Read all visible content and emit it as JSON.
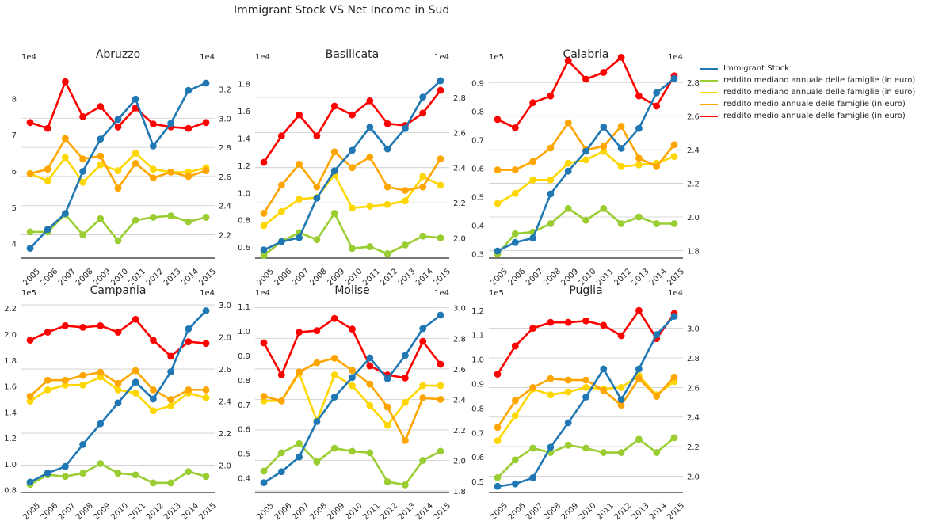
{
  "figure": {
    "suptitle": "Immigrant Stock VS Net Income in Sud"
  },
  "colors": {
    "immigrant": "#1f77b4",
    "mediano_1": "#9acd32",
    "mediano_2": "#ffd700",
    "medio_1": "#ffa500",
    "medio_2": "#ff0000"
  },
  "legend": [
    {
      "label": "Immigrant Stock",
      "color_key": "immigrant"
    },
    {
      "label": "reddito mediano annuale delle famiglie (in euro)",
      "color_key": "mediano_1"
    },
    {
      "label": "reddito mediano annuale delle famiglie (in euro)",
      "color_key": "mediano_2"
    },
    {
      "label": "reddito medio annuale delle famiglie (in euro)",
      "color_key": "medio_1"
    },
    {
      "label": "reddito medio annuale delle famiglie (in euro)",
      "color_key": "medio_2"
    }
  ],
  "chart_data": [
    {
      "type": "line",
      "title": "Abruzzo",
      "x": [
        "2005",
        "2006",
        "2007",
        "2008",
        "2009",
        "2010",
        "2011",
        "2012",
        "2013",
        "2014",
        "2015"
      ],
      "left_axis": {
        "offset_label": "1e4",
        "ylim": [
          3.6,
          8.9
        ],
        "ticks": [
          "4",
          "5",
          "6",
          "7",
          "8"
        ],
        "tick_values": [
          4,
          5,
          6,
          7,
          8
        ]
      },
      "right_axis": {
        "offset_label": "1e4",
        "ylim": [
          2.04,
          3.36
        ],
        "ticks": [
          "2.2",
          "2.4",
          "2.6",
          "2.8",
          "3.0",
          "3.2"
        ],
        "tick_values": [
          2.2,
          2.4,
          2.6,
          2.8,
          3.0,
          3.2
        ]
      },
      "grid": true,
      "series": [
        {
          "color_key": "immigrant",
          "axis": "left",
          "values": [
            3.87,
            4.39,
            4.83,
            5.99,
            6.88,
            7.42,
            7.98,
            6.69,
            7.31,
            8.22,
            8.42
          ]
        },
        {
          "color_key": "mediano_1",
          "axis": "right",
          "values": [
            2.22,
            2.22,
            2.34,
            2.2,
            2.31,
            2.16,
            2.3,
            2.32,
            2.33,
            2.29,
            2.32
          ]
        },
        {
          "color_key": "mediano_2",
          "axis": "right",
          "values": [
            2.62,
            2.57,
            2.73,
            2.56,
            2.68,
            2.64,
            2.76,
            2.65,
            2.63,
            2.63,
            2.66
          ]
        },
        {
          "color_key": "medio_1",
          "axis": "right",
          "values": [
            2.62,
            2.65,
            2.86,
            2.72,
            2.74,
            2.52,
            2.69,
            2.59,
            2.63,
            2.6,
            2.64
          ]
        },
        {
          "color_key": "medio_2",
          "axis": "right",
          "values": [
            2.97,
            2.93,
            3.25,
            3.01,
            3.08,
            2.94,
            3.07,
            2.96,
            2.94,
            2.93,
            2.97
          ]
        }
      ]
    },
    {
      "type": "line",
      "title": "Basilicata",
      "x": [
        "2005",
        "2006",
        "2007",
        "2008",
        "2009",
        "2010",
        "2011",
        "2012",
        "2013",
        "2014",
        "2015"
      ],
      "left_axis": {
        "offset_label": "1e4",
        "ylim": [
          0.52,
          1.93
        ],
        "ticks": [
          "0.6",
          "0.8",
          "1.0",
          "1.2",
          "1.4",
          "1.6",
          "1.8"
        ],
        "tick_values": [
          0.6,
          0.8,
          1.0,
          1.2,
          1.4,
          1.6,
          1.8
        ]
      },
      "right_axis": {
        "offset_label": "1e4",
        "ylim": [
          1.885,
          2.98
        ],
        "ticks": [
          "2.0",
          "2.2",
          "2.4",
          "2.6",
          "2.8"
        ],
        "tick_values": [
          2.0,
          2.2,
          2.4,
          2.6,
          2.8
        ]
      },
      "grid": true,
      "series": [
        {
          "color_key": "immigrant",
          "axis": "left",
          "values": [
            0.58,
            0.64,
            0.67,
            0.96,
            1.16,
            1.31,
            1.48,
            1.32,
            1.47,
            1.7,
            1.82
          ]
        },
        {
          "color_key": "mediano_1",
          "axis": "right",
          "values": [
            1.9,
            1.98,
            2.03,
            1.99,
            2.14,
            1.94,
            1.95,
            1.91,
            1.96,
            2.01,
            2.0
          ]
        },
        {
          "color_key": "mediano_2",
          "axis": "right",
          "values": [
            2.07,
            2.15,
            2.22,
            2.23,
            2.36,
            2.17,
            2.18,
            2.19,
            2.21,
            2.35,
            2.3
          ]
        },
        {
          "color_key": "medio_1",
          "axis": "right",
          "values": [
            2.14,
            2.3,
            2.42,
            2.29,
            2.49,
            2.4,
            2.46,
            2.29,
            2.27,
            2.29,
            2.45
          ]
        },
        {
          "color_key": "medio_2",
          "axis": "right",
          "values": [
            2.43,
            2.58,
            2.7,
            2.58,
            2.75,
            2.7,
            2.78,
            2.65,
            2.64,
            2.71,
            2.84
          ]
        }
      ]
    },
    {
      "type": "line",
      "title": "Calabria",
      "x": [
        "2005",
        "2006",
        "2007",
        "2008",
        "2009",
        "2010",
        "2011",
        "2012",
        "2013",
        "2014",
        "2015"
      ],
      "left_axis": {
        "offset_label": "1e5",
        "ylim": [
          0.285,
          0.96
        ],
        "ticks": [
          "0.3",
          "0.4",
          "0.5",
          "0.6",
          "0.7",
          "0.8",
          "0.9"
        ],
        "tick_values": [
          0.3,
          0.4,
          0.5,
          0.6,
          0.7,
          0.8,
          0.9
        ]
      },
      "right_axis": {
        "offset_label": "1e4",
        "ylim": [
          1.755,
          2.9
        ],
        "ticks": [
          "1.8",
          "2.0",
          "2.2",
          "2.4",
          "2.6",
          "2.8"
        ],
        "tick_values": [
          1.8,
          2.0,
          2.2,
          2.4,
          2.6,
          2.8
        ]
      },
      "grid": true,
      "series": [
        {
          "color_key": "immigrant",
          "axis": "left",
          "values": [
            0.31,
            0.34,
            0.355,
            0.51,
            0.59,
            0.66,
            0.745,
            0.67,
            0.74,
            0.865,
            0.915
          ]
        },
        {
          "color_key": "mediano_1",
          "axis": "right",
          "values": [
            1.78,
            1.9,
            1.91,
            1.96,
            2.05,
            1.98,
            2.05,
            1.96,
            2.0,
            1.96,
            1.96
          ]
        },
        {
          "color_key": "mediano_2",
          "axis": "right",
          "values": [
            2.08,
            2.14,
            2.22,
            2.22,
            2.32,
            2.34,
            2.39,
            2.3,
            2.31,
            2.32,
            2.36
          ]
        },
        {
          "color_key": "medio_1",
          "axis": "right",
          "values": [
            2.28,
            2.28,
            2.33,
            2.41,
            2.56,
            2.4,
            2.42,
            2.54,
            2.35,
            2.3,
            2.43
          ]
        },
        {
          "color_key": "medio_2",
          "axis": "right",
          "values": [
            2.58,
            2.53,
            2.68,
            2.72,
            2.93,
            2.82,
            2.86,
            2.95,
            2.72,
            2.66,
            2.84
          ]
        }
      ]
    },
    {
      "type": "line",
      "title": "Campania",
      "x": [
        "2005",
        "2006",
        "2007",
        "2008",
        "2009",
        "2010",
        "2011",
        "2012",
        "2013",
        "2014",
        "2015"
      ],
      "left_axis": {
        "offset_label": "1e5",
        "ylim": [
          0.78,
          2.25
        ],
        "ticks": [
          "0.8",
          "1.0",
          "1.2",
          "1.4",
          "1.6",
          "1.8",
          "2.0",
          "2.2"
        ],
        "tick_values": [
          0.8,
          1.0,
          1.2,
          1.4,
          1.6,
          1.8,
          2.0,
          2.2
        ]
      },
      "right_axis": {
        "offset_label": "1e4",
        "ylim": [
          1.83,
          3.02
        ],
        "ticks": [
          "2.0",
          "2.2",
          "2.4",
          "2.6",
          "2.8",
          "3.0"
        ],
        "tick_values": [
          2.0,
          2.2,
          2.4,
          2.6,
          2.8,
          3.0
        ]
      },
      "grid": true,
      "series": [
        {
          "color_key": "immigrant",
          "axis": "left",
          "values": [
            0.86,
            0.93,
            0.98,
            1.15,
            1.31,
            1.47,
            1.63,
            1.5,
            1.71,
            2.04,
            2.18
          ]
        },
        {
          "color_key": "mediano_1",
          "axis": "right",
          "values": [
            1.88,
            1.94,
            1.93,
            1.95,
            2.01,
            1.95,
            1.94,
            1.89,
            1.89,
            1.96,
            1.93
          ]
        },
        {
          "color_key": "mediano_2",
          "axis": "right",
          "values": [
            2.4,
            2.47,
            2.5,
            2.5,
            2.55,
            2.47,
            2.45,
            2.34,
            2.37,
            2.45,
            2.42
          ]
        },
        {
          "color_key": "medio_1",
          "axis": "right",
          "values": [
            2.43,
            2.53,
            2.53,
            2.56,
            2.58,
            2.51,
            2.59,
            2.47,
            2.41,
            2.47,
            2.47
          ]
        },
        {
          "color_key": "medio_2",
          "axis": "right",
          "values": [
            2.78,
            2.83,
            2.87,
            2.86,
            2.87,
            2.83,
            2.91,
            2.78,
            2.68,
            2.77,
            2.76
          ]
        }
      ]
    },
    {
      "type": "line",
      "title": "Molise",
      "x": [
        "2005",
        "2006",
        "2007",
        "2008",
        "2009",
        "2010",
        "2011",
        "2012",
        "2013",
        "2014",
        "2015"
      ],
      "left_axis": {
        "offset_label": "1e4",
        "ylim": [
          0.34,
          1.12
        ],
        "ticks": [
          "0.4",
          "0.5",
          "0.6",
          "0.7",
          "0.8",
          "0.9",
          "1.0",
          "1.1"
        ],
        "tick_values": [
          0.4,
          0.5,
          0.6,
          0.7,
          0.8,
          0.9,
          1.0,
          1.1
        ]
      },
      "right_axis": {
        "offset_label": "1e4",
        "ylim": [
          1.79,
          3.04
        ],
        "ticks": [
          "1.8",
          "2.0",
          "2.2",
          "2.4",
          "2.6",
          "2.8",
          "3.0"
        ],
        "tick_values": [
          1.8,
          2.0,
          2.2,
          2.4,
          2.6,
          2.8,
          3.0
        ]
      },
      "grid": true,
      "series": [
        {
          "color_key": "immigrant",
          "axis": "left",
          "values": [
            0.38,
            0.425,
            0.485,
            0.63,
            0.73,
            0.81,
            0.89,
            0.805,
            0.9,
            1.01,
            1.065
          ]
        },
        {
          "color_key": "mediano_1",
          "axis": "right",
          "values": [
            1.93,
            2.05,
            2.11,
            1.99,
            2.08,
            2.06,
            2.05,
            1.86,
            1.84,
            2.0,
            2.06
          ]
        },
        {
          "color_key": "mediano_2",
          "axis": "right",
          "values": [
            2.39,
            2.39,
            2.57,
            2.26,
            2.56,
            2.49,
            2.36,
            2.23,
            2.38,
            2.49,
            2.49
          ]
        },
        {
          "color_key": "medio_1",
          "axis": "right",
          "values": [
            2.42,
            2.39,
            2.58,
            2.64,
            2.67,
            2.59,
            2.5,
            2.35,
            2.13,
            2.41,
            2.4
          ]
        },
        {
          "color_key": "medio_2",
          "axis": "right",
          "values": [
            2.77,
            2.56,
            2.84,
            2.85,
            2.93,
            2.86,
            2.62,
            2.56,
            2.54,
            2.78,
            2.63
          ]
        }
      ]
    },
    {
      "type": "line",
      "title": "Puglia",
      "x": [
        "2005",
        "2006",
        "2007",
        "2008",
        "2009",
        "2010",
        "2011",
        "2012",
        "2013",
        "2014",
        "2015"
      ],
      "left_axis": {
        "offset_label": "1e5",
        "ylim": [
          0.455,
          1.235
        ],
        "ticks": [
          "0.5",
          "0.6",
          "0.7",
          "0.8",
          "0.9",
          "1.0",
          "1.1",
          "1.2"
        ],
        "tick_values": [
          0.5,
          0.6,
          0.7,
          0.8,
          0.9,
          1.0,
          1.1,
          1.2
        ]
      },
      "right_axis": {
        "offset_label": "1e4",
        "ylim": [
          1.89,
          3.18
        ],
        "ticks": [
          "2.0",
          "2.2",
          "2.4",
          "2.6",
          "2.8",
          "3.0"
        ],
        "tick_values": [
          2.0,
          2.2,
          2.4,
          2.6,
          2.8,
          3.0
        ]
      },
      "grid": true,
      "series": [
        {
          "color_key": "immigrant",
          "axis": "left",
          "values": [
            0.48,
            0.49,
            0.515,
            0.64,
            0.74,
            0.845,
            0.96,
            0.835,
            0.96,
            1.1,
            1.175
          ]
        },
        {
          "color_key": "mediano_1",
          "axis": "right",
          "values": [
            1.99,
            2.11,
            2.19,
            2.16,
            2.21,
            2.19,
            2.16,
            2.16,
            2.25,
            2.16,
            2.26
          ]
        },
        {
          "color_key": "mediano_2",
          "axis": "right",
          "values": [
            2.24,
            2.41,
            2.59,
            2.55,
            2.57,
            2.6,
            2.59,
            2.6,
            2.68,
            2.55,
            2.64
          ]
        },
        {
          "color_key": "medio_1",
          "axis": "right",
          "values": [
            2.33,
            2.51,
            2.6,
            2.66,
            2.65,
            2.65,
            2.58,
            2.48,
            2.66,
            2.54,
            2.67
          ]
        },
        {
          "color_key": "medio_2",
          "axis": "right",
          "values": [
            2.69,
            2.88,
            3.0,
            3.04,
            3.04,
            3.05,
            3.02,
            2.95,
            3.12,
            2.93,
            3.1
          ]
        }
      ]
    }
  ]
}
